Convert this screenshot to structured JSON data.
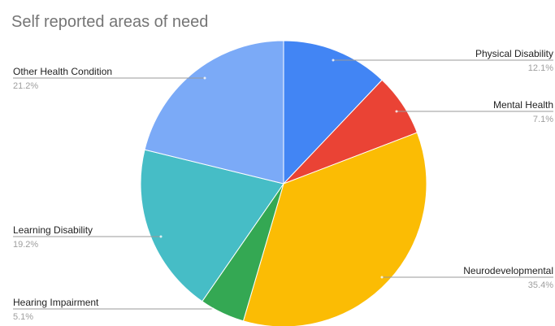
{
  "chart_data": {
    "type": "pie",
    "title": "Self reported areas of need",
    "slices": [
      {
        "label": "Physical Disability",
        "value": 12.1,
        "value_label": "12.1%",
        "color": "#4285f4"
      },
      {
        "label": "Mental Health",
        "value": 7.1,
        "value_label": "7.1%",
        "color": "#ea4335"
      },
      {
        "label": "Neurodevelopmental",
        "value": 35.4,
        "value_label": "35.4%",
        "color": "#fbbc04"
      },
      {
        "label": "Hearing Impairment",
        "value": 5.1,
        "value_label": "5.1%",
        "color": "#34a853"
      },
      {
        "label": "Learning Disability",
        "value": 19.2,
        "value_label": "19.2%",
        "color": "#46bdc6"
      },
      {
        "label": "Other Health Condition",
        "value": 21.2,
        "value_label": "21.2%",
        "color": "#7baaf7"
      }
    ],
    "start_angle_deg": 0,
    "direction": "clockwise",
    "legend": "none",
    "label_style": "outside labels with leader lines"
  }
}
